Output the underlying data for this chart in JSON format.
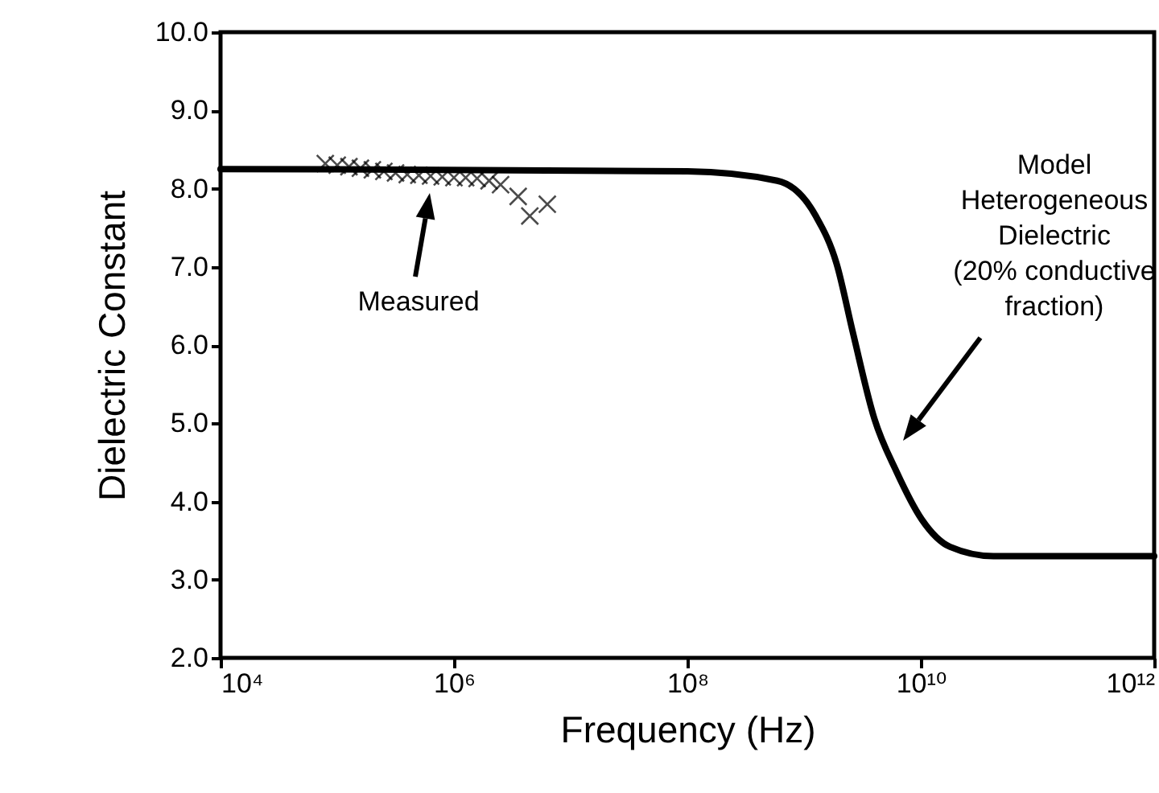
{
  "chart_data": {
    "type": "line",
    "xlabel": "Frequency (Hz)",
    "ylabel": "Dielectric Constant",
    "log": "x",
    "xlim": [
      10000,
      1000000000000
    ],
    "xticks": [
      {
        "value": 10000,
        "label": "10⁴"
      },
      {
        "value": 1000000,
        "label": "10⁶"
      },
      {
        "value": 100000000,
        "label": "10⁸"
      },
      {
        "value": 10000000000,
        "label": "10¹⁰"
      },
      {
        "value": 1000000000000,
        "label": "10¹²"
      }
    ],
    "ylim": [
      2,
      10
    ],
    "yticks": [
      {
        "value": 2,
        "label": "2.0"
      },
      {
        "value": 3,
        "label": "3.0"
      },
      {
        "value": 4,
        "label": "4.0"
      },
      {
        "value": 5,
        "label": "5.0"
      },
      {
        "value": 6,
        "label": "6.0"
      },
      {
        "value": 7,
        "label": "7.0"
      },
      {
        "value": 8,
        "label": "8.0"
      },
      {
        "value": 9,
        "label": "9.0"
      },
      {
        "value": 10,
        "label": "10.0"
      }
    ],
    "series": [
      {
        "type": "line",
        "color": "#000000",
        "line_style": "solid",
        "x": [
          10000,
          100000000,
          590000000,
          1260000000,
          1900000000,
          2630000000,
          4000000000,
          6200000000,
          10200000000,
          17800000000,
          42000000000,
          1000000000000
        ],
        "values": [
          8.25,
          8.22,
          8.1,
          7.65,
          7.04,
          6.15,
          5.06,
          4.38,
          3.77,
          3.42,
          3.3,
          3.3
        ]
      },
      {
        "type": "scatter",
        "color": "#000000",
        "marker": "cross",
        "x": [
          79000,
          100000,
          126000,
          158000,
          200000,
          251000,
          316000,
          398000,
          501000,
          631000,
          794000,
          1000000,
          1260000,
          1580000,
          2000000,
          2510000,
          3550000,
          4470000,
          6310000
        ],
        "values": [
          8.32,
          8.3,
          8.28,
          8.26,
          8.24,
          8.22,
          8.2,
          8.18,
          8.17,
          8.16,
          8.15,
          8.14,
          8.14,
          8.13,
          8.1,
          8.05,
          7.9,
          7.65,
          7.8
        ]
      }
    ],
    "annotations": [
      "Measured",
      "Model\nHeterogeneous\nDielectric\n(20% conductive\nfraction)"
    ]
  }
}
